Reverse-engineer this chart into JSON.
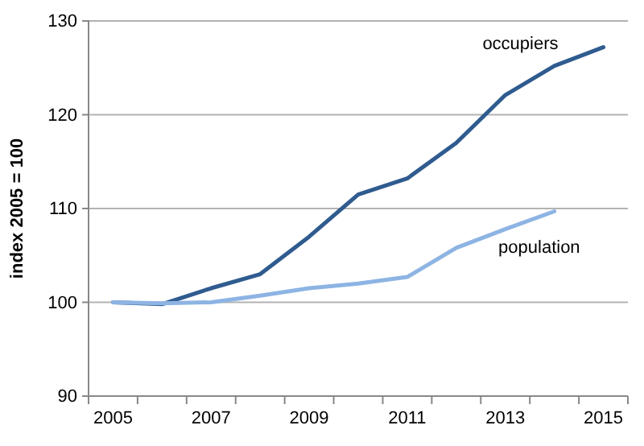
{
  "chart_data": {
    "type": "line",
    "ylabel": "index 2005 = 100",
    "categories": [
      "2005",
      null,
      "2007",
      null,
      "2009",
      null,
      "2011",
      null,
      "2013",
      null,
      "2015"
    ],
    "series": [
      {
        "name": "occupiers",
        "color": "#2f5b8f",
        "values": [
          100,
          99.8,
          101.5,
          103,
          107,
          111.5,
          113.2,
          117,
          122.1,
          125.2,
          127.2
        ]
      },
      {
        "name": "population",
        "color": "#8db4e3",
        "values": [
          100,
          99.9,
          100,
          100.7,
          101.5,
          102,
          102.7,
          105.8,
          107.8,
          109.7,
          null
        ]
      }
    ],
    "ylim": [
      90,
      130
    ],
    "yticks": [
      90,
      100,
      110,
      120,
      130
    ],
    "grid": "y",
    "marker": "none",
    "line_style": "solid"
  }
}
